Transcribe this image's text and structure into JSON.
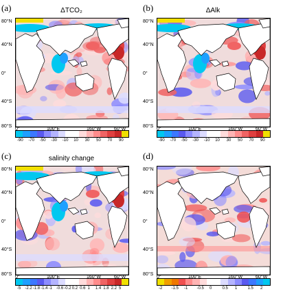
{
  "figure": {
    "colors": {
      "land": "#ffffff",
      "ice": "#f2e000",
      "coast": "#000000"
    }
  },
  "panels": [
    {
      "id": "a",
      "label": "(a)",
      "title": "ΔTCO₂",
      "lat_labels": [
        "80°N",
        "40°N",
        "0°",
        "40°S",
        "80°S"
      ],
      "lon_labels": [
        "0°",
        "100°E",
        "160°W",
        "60°W"
      ],
      "colorbar": {
        "ticks": [
          "-90",
          "-70",
          "-50",
          "-30",
          "-10",
          "10",
          "30",
          "50",
          "70",
          "90"
        ],
        "colors": [
          "#00c8f0",
          "#1ea0ff",
          "#3c78ff",
          "#5a5af0",
          "#8c8cff",
          "#b4b4ff",
          "#dcdcff",
          "#ffffff",
          "#ffffff",
          "#ffdcdc",
          "#ffb4b4",
          "#ff8c8c",
          "#f06464",
          "#e04040",
          "#c82828",
          "#f0e000"
        ]
      }
    },
    {
      "id": "b",
      "label": "(b)",
      "title": "ΔAlk",
      "lat_labels": [
        "80°N",
        "40°N",
        "0°",
        "40°S",
        "80°S"
      ],
      "lon_labels": [
        "0°",
        "100°E",
        "160°W",
        "60°W"
      ],
      "colorbar": {
        "ticks": [
          "-90",
          "-70",
          "-50",
          "-30",
          "-10",
          "10",
          "30",
          "50",
          "70",
          "90"
        ],
        "colors": [
          "#00c8f0",
          "#1ea0ff",
          "#3c78ff",
          "#5a5af0",
          "#8c8cff",
          "#b4b4ff",
          "#dcdcff",
          "#ffffff",
          "#ffffff",
          "#ffdcdc",
          "#ffb4b4",
          "#ff8c8c",
          "#f06464",
          "#e04040",
          "#c82828",
          "#f0e000"
        ]
      }
    },
    {
      "id": "c",
      "label": "(c)",
      "title": "salinity change",
      "lat_labels": [
        "80°N",
        "40°N",
        "0°",
        "40°S",
        "80°S"
      ],
      "lon_labels": [
        "0°",
        "100°E",
        "160°W",
        "60°W"
      ],
      "colorbar": {
        "ticks": [
          "-5",
          "-2.2",
          "-1.8",
          "-1.4",
          "-1",
          "-0.6",
          "-0.2",
          "0.2",
          "0.6",
          "1",
          "1.4",
          "1.8",
          "2.2",
          "5"
        ],
        "colors": [
          "#00c8f0",
          "#1ea0ff",
          "#3c78ff",
          "#5a5af0",
          "#8c8cff",
          "#b4b4ff",
          "#dcdcff",
          "#ffffff",
          "#ffffff",
          "#ffdcdc",
          "#ffb4b4",
          "#ff8c8c",
          "#f06464",
          "#e04040",
          "#c82828",
          "#f0e000"
        ]
      }
    },
    {
      "id": "d",
      "label": "(d)",
      "title": "",
      "lat_labels": [
        "80°N",
        "40°N",
        "0°",
        "40°S",
        "80°S"
      ],
      "lon_labels": [
        "0°",
        "100°E",
        "160°W",
        "60°W"
      ],
      "colorbar": {
        "ticks": [
          "-2",
          "-1.5",
          "-1",
          "-0.5",
          "0",
          "0.5",
          "1",
          "1.5",
          "2"
        ],
        "colors": [
          "#f0e000",
          "#f0a000",
          "#f07800",
          "#f05050",
          "#ff8c8c",
          "#ffb4b4",
          "#ffdcdc",
          "#ffffff",
          "#ffffff",
          "#dcdcff",
          "#b4b4ff",
          "#8c8cff",
          "#5a5af0",
          "#3c78ff",
          "#1ea0ff",
          "#00c8f0"
        ]
      }
    }
  ]
}
